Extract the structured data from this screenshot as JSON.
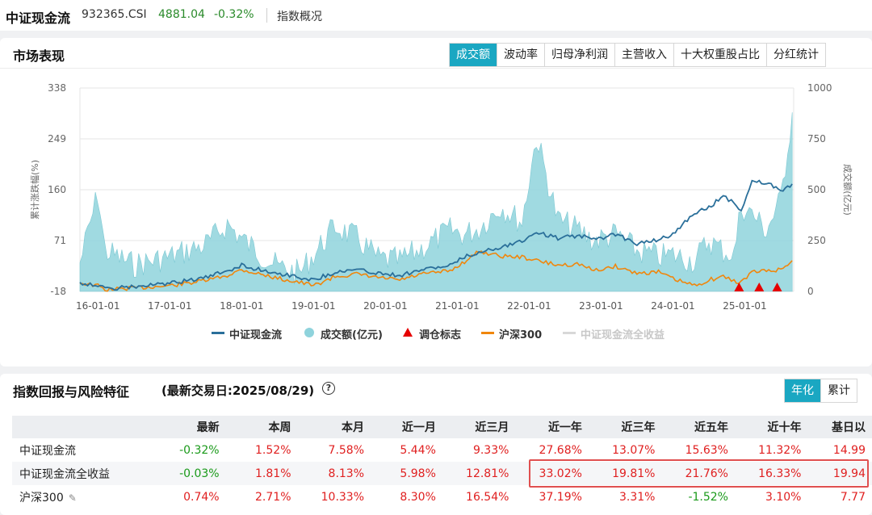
{
  "header": {
    "index_name": "中证现金流",
    "index_code": "932365.CSI",
    "price": "4881.04",
    "change": "-0.32%",
    "overview_label": "指数概况"
  },
  "market": {
    "title": "市场表现",
    "tabs": [
      "成交额",
      "波动率",
      "归母净利润",
      "主营收入",
      "十大权重股占比",
      "分红统计"
    ],
    "active_tab": 0
  },
  "colors": {
    "index_line": "#2a6f9a",
    "volume_fill": "#8fd3dc",
    "hs300_line": "#f0860c",
    "marker": "#e60000",
    "legend_disabled": "#c8c8c8",
    "accent": "#1aa7c2",
    "positive": "#e02020",
    "negative": "#1a9a1a"
  },
  "chart_data": {
    "type": "line",
    "title": "",
    "ylabel": "累计涨跌幅(%)",
    "y2label": "成交额(亿元)",
    "ylim": [
      -18,
      338
    ],
    "yticks": [
      "338",
      "249",
      "160",
      "71",
      "-18"
    ],
    "y2lim": [
      0,
      1000
    ],
    "y2ticks": [
      "1000",
      "750",
      "500",
      "250",
      "0"
    ],
    "x_tick_labels": [
      "16-01-01",
      "17-01-01",
      "18-01-01",
      "19-01-01",
      "20-01-01",
      "21-01-01",
      "22-01-01",
      "23-01-01",
      "24-01-01",
      "25-01-01"
    ],
    "x": [
      2015.75,
      2016.0,
      2016.1,
      2016.5,
      2017.0,
      2017.5,
      2017.8,
      2018.0,
      2018.1,
      2018.5,
      2018.8,
      2019.0,
      2019.3,
      2019.6,
      2019.9,
      2020.2,
      2020.5,
      2020.9,
      2021.1,
      2021.3,
      2021.6,
      2021.9,
      2022.1,
      2022.4,
      2022.7,
      2022.9,
      2023.2,
      2023.5,
      2023.8,
      2024.0,
      2024.3,
      2024.5,
      2024.7,
      2024.85,
      2024.95,
      2025.1,
      2025.3,
      2025.5,
      2025.66
    ],
    "series": [
      {
        "name": "中证现金流",
        "axis": "left",
        "values": [
          -3,
          -7,
          -14,
          -10,
          -4,
          6,
          18,
          28,
          24,
          14,
          7,
          2,
          16,
          20,
          14,
          10,
          20,
          27,
          42,
          50,
          60,
          70,
          86,
          75,
          80,
          72,
          82,
          66,
          72,
          82,
          120,
          128,
          150,
          136,
          125,
          174,
          172,
          158,
          170
        ]
      },
      {
        "name": "成交额(亿元)",
        "axis": "right",
        "values": [
          140,
          480,
          200,
          130,
          170,
          230,
          330,
          260,
          230,
          120,
          90,
          180,
          320,
          260,
          160,
          150,
          210,
          300,
          280,
          310,
          420,
          340,
          760,
          350,
          300,
          250,
          280,
          200,
          170,
          180,
          150,
          250,
          200,
          180,
          420,
          380,
          300,
          450,
          880
        ]
      },
      {
        "name": "沪深300",
        "axis": "left",
        "values": [
          -3,
          -8,
          -15,
          -12,
          -8,
          1,
          10,
          20,
          17,
          5,
          -2,
          -8,
          8,
          12,
          6,
          2,
          12,
          18,
          34,
          52,
          44,
          42,
          36,
          28,
          30,
          18,
          26,
          14,
          16,
          4,
          -8,
          2,
          8,
          0,
          -2,
          16,
          18,
          20,
          36
        ]
      }
    ],
    "markers": {
      "name": "调仓标志",
      "x": [
        2024.92,
        2025.2,
        2025.45
      ]
    },
    "legend": [
      "中证现金流",
      "成交额(亿元)",
      "调仓标志",
      "沪深300",
      "中证现金流全收益"
    ],
    "legend_disabled": [
      "中证现金流全收益"
    ],
    "legend_position": "bottom"
  },
  "returns": {
    "title": "指数回报与风险特征",
    "subtitle": "(最新交易日:2025/08/29)",
    "help": "?",
    "tabs": [
      "年化",
      "累计"
    ],
    "active_tab": 0,
    "columns": [
      "最新",
      "本周",
      "本月",
      "近一月",
      "近三月",
      "近一年",
      "近三年",
      "近五年",
      "近十年",
      "基日以"
    ],
    "rows": [
      {
        "name": "中证现金流",
        "values": [
          "-0.32%",
          "1.52%",
          "7.58%",
          "5.44%",
          "9.33%",
          "27.68%",
          "13.07%",
          "15.63%",
          "11.32%",
          "14.99"
        ]
      },
      {
        "name": "中证现金流全收益",
        "values": [
          "-0.03%",
          "1.81%",
          "8.13%",
          "5.98%",
          "12.81%",
          "33.02%",
          "19.81%",
          "21.76%",
          "16.33%",
          "19.94"
        ]
      },
      {
        "name": "沪深300",
        "values": [
          "0.74%",
          "2.71%",
          "10.33%",
          "8.30%",
          "16.54%",
          "37.19%",
          "3.31%",
          "-1.52%",
          "3.10%",
          "7.77"
        ]
      }
    ]
  }
}
